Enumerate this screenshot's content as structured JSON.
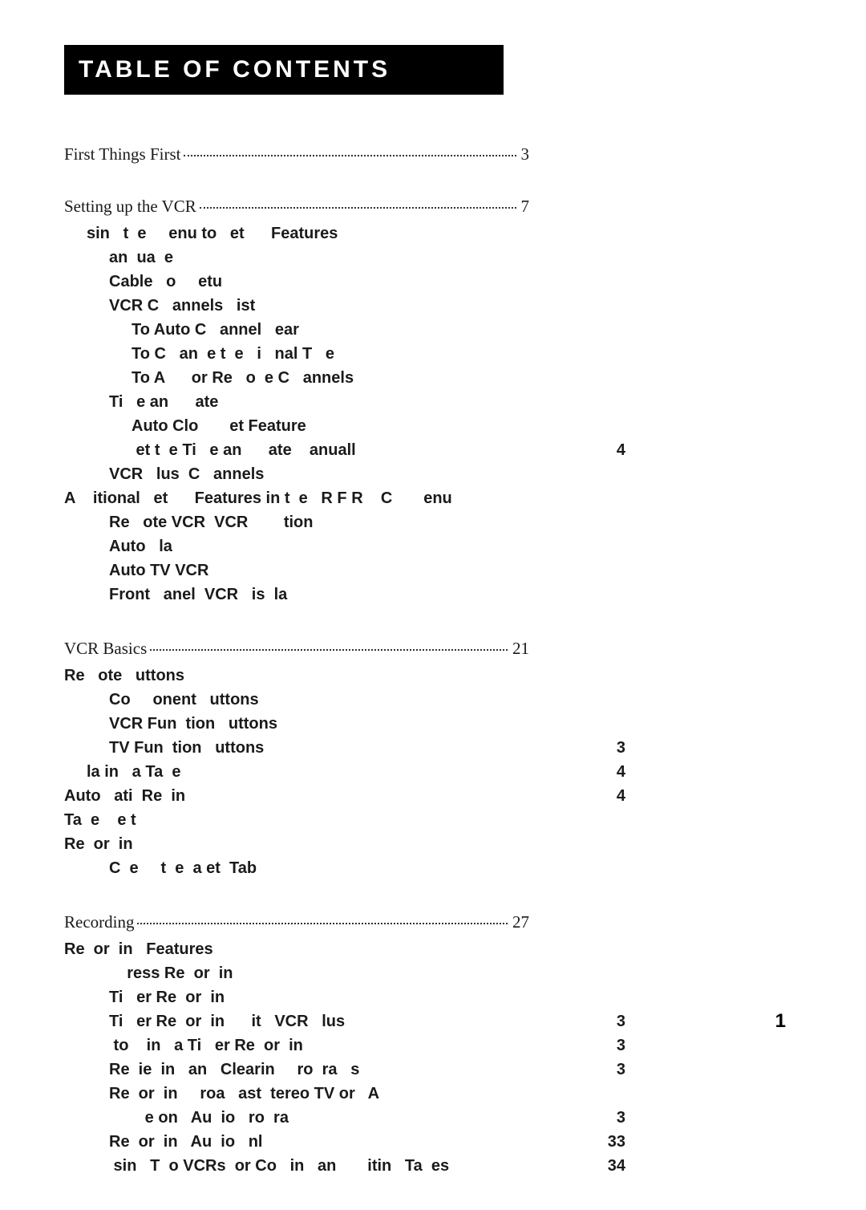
{
  "title_bar": "TABLE OF CONTENTS",
  "page_number": "1",
  "sections": [
    {
      "head_label": "First Things First",
      "head_page": "3",
      "items": []
    },
    {
      "head_label": "Setting up the VCR",
      "head_page": "7",
      "items": [
        {
          "indent": 1,
          "label": "sin   t  e     enu to   et      Features",
          "page": ""
        },
        {
          "indent": 2,
          "label": "an  ua  e",
          "page": ""
        },
        {
          "indent": 2,
          "label": "Cable   o     etu",
          "page": ""
        },
        {
          "indent": 2,
          "label": "VCR C   annels   ist",
          "page": ""
        },
        {
          "indent": 3,
          "label": "To Auto C   annel   ear",
          "page": ""
        },
        {
          "indent": 3,
          "label": "To C   an  e t  e   i   nal T   e",
          "page": ""
        },
        {
          "indent": 3,
          "label": "To A      or Re   o  e C   annels",
          "page": ""
        },
        {
          "indent": 2,
          "label": "Ti   e an      ate",
          "page": ""
        },
        {
          "indent": 3,
          "label": "Auto Clo       et Feature",
          "page": ""
        },
        {
          "indent": 3,
          "label": " et t  e Ti   e an      ate    anuall",
          "page": "4"
        },
        {
          "indent": 2,
          "label": "VCR   lus  C   annels",
          "page": ""
        },
        {
          "indent": 0,
          "label": "A    itional   et      Features in t  e   R F R    C       enu",
          "page": ""
        },
        {
          "indent": 2,
          "label": "Re   ote VCR  VCR        tion",
          "page": ""
        },
        {
          "indent": 2,
          "label": "Auto   la",
          "page": ""
        },
        {
          "indent": 2,
          "label": "Auto TV VCR",
          "page": ""
        },
        {
          "indent": 2,
          "label": "Front   anel  VCR   is  la",
          "page": ""
        }
      ]
    },
    {
      "head_label": "VCR Basics",
      "head_page": "21",
      "items": [
        {
          "indent": 0,
          "label": "Re   ote   uttons",
          "page": ""
        },
        {
          "indent": 2,
          "label": "Co     onent   uttons",
          "page": ""
        },
        {
          "indent": 2,
          "label": "VCR Fun  tion   uttons",
          "page": ""
        },
        {
          "indent": 2,
          "label": "TV Fun  tion   uttons",
          "page": "3"
        },
        {
          "indent": 1,
          "label": "la in   a Ta  e",
          "page": "4"
        },
        {
          "indent": 0,
          "label": "Auto   ati  Re  in",
          "page": "4"
        },
        {
          "indent": 0,
          "label": "Ta  e    e t",
          "page": ""
        },
        {
          "indent": 0,
          "label": "Re  or  in",
          "page": ""
        },
        {
          "indent": 2,
          "label": "C  e     t  e  a et  Tab",
          "page": ""
        }
      ]
    },
    {
      "head_label": "Recording",
      "head_page": "27",
      "items": [
        {
          "indent": 0,
          "label": "Re  or  in   Features",
          "page": ""
        },
        {
          "indent": 2,
          "label": "    ress Re  or  in",
          "page": ""
        },
        {
          "indent": 2,
          "label": "Ti   er Re  or  in",
          "page": ""
        },
        {
          "indent": 2,
          "label": "Ti   er Re  or  in      it   VCR   lus",
          "page": "3"
        },
        {
          "indent": 2,
          "label": " to    in   a Ti   er Re  or  in",
          "page": "3"
        },
        {
          "indent": 2,
          "label": "Re  ie  in   an   Clearin     ro  ra   s",
          "page": "3"
        },
        {
          "indent": 2,
          "label": "Re  or  in     roa   ast  tereo TV or   A",
          "page": ""
        },
        {
          "indent": 3,
          "label": "   e on   Au  io   ro  ra",
          "page": "3"
        },
        {
          "indent": 2,
          "label": "Re  or  in   Au  io   nl",
          "page": "33"
        },
        {
          "indent": 2,
          "label": " sin   T  o VCRs  or Co   in   an       itin   Ta  es",
          "page": "34"
        }
      ]
    }
  ]
}
